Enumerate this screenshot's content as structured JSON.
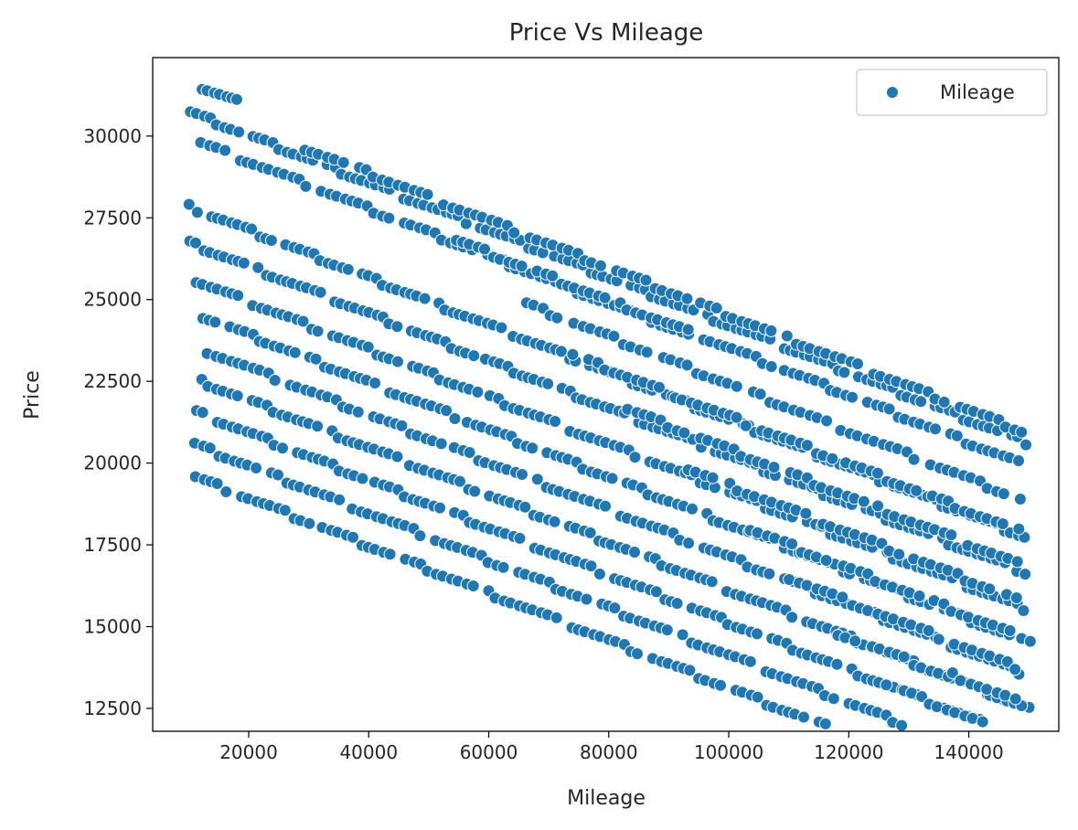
{
  "chart_data": {
    "type": "scatter",
    "title": "Price Vs Mileage",
    "xlabel": "Mileage",
    "ylabel": "Price",
    "xlim": [
      4000,
      155000
    ],
    "ylim": [
      11800,
      32400
    ],
    "xticks": [
      20000,
      40000,
      60000,
      80000,
      100000,
      120000,
      140000
    ],
    "yticks": [
      12500,
      15000,
      17500,
      20000,
      22500,
      25000,
      27500,
      30000
    ],
    "grid": false,
    "legend": {
      "placement": "top-right",
      "entries": [
        "Mileage"
      ]
    },
    "marker_color": "#1f77b4",
    "trend": {
      "slope": -0.0725
    },
    "series": [
      {
        "name": "Mileage",
        "bands": [
          {
            "intercept": 32300,
            "x_from": 12000,
            "x_to": 18500,
            "step": 1000
          },
          {
            "intercept": 31400,
            "x_from": 10000,
            "x_to": 150000,
            "step": 1150
          },
          {
            "intercept": 31700,
            "x_from": 29000,
            "x_to": 149000,
            "step": 1300
          },
          {
            "intercept": 30600,
            "x_from": 12000,
            "x_to": 94000,
            "step": 1250
          },
          {
            "intercept": 28500,
            "x_from": 10000,
            "x_to": 150000,
            "step": 1150
          },
          {
            "intercept": 30700,
            "x_from": 53000,
            "x_to": 149000,
            "step": 1250
          },
          {
            "intercept": 27400,
            "x_from": 10000,
            "x_to": 150000,
            "step": 1150
          },
          {
            "intercept": 26300,
            "x_from": 11000,
            "x_to": 150000,
            "step": 1200
          },
          {
            "intercept": 29600,
            "x_from": 66000,
            "x_to": 149000,
            "step": 1350
          },
          {
            "intercept": 25300,
            "x_from": 12000,
            "x_to": 150000,
            "step": 1200
          },
          {
            "intercept": 28600,
            "x_from": 74000,
            "x_to": 149000,
            "step": 1300
          },
          {
            "intercept": 24300,
            "x_from": 13000,
            "x_to": 150000,
            "step": 1250
          },
          {
            "intercept": 27600,
            "x_from": 83000,
            "x_to": 149000,
            "step": 1350
          },
          {
            "intercept": 23300,
            "x_from": 12000,
            "x_to": 150000,
            "step": 1200
          },
          {
            "intercept": 26500,
            "x_from": 93000,
            "x_to": 148000,
            "step": 1400
          },
          {
            "intercept": 22300,
            "x_from": 11000,
            "x_to": 150000,
            "step": 1200
          },
          {
            "intercept": 25400,
            "x_from": 102000,
            "x_to": 149000,
            "step": 1400
          },
          {
            "intercept": 21300,
            "x_from": 11000,
            "x_to": 150000,
            "step": 1250
          },
          {
            "intercept": 24400,
            "x_from": 110000,
            "x_to": 149000,
            "step": 1450
          },
          {
            "intercept": 20300,
            "x_from": 11000,
            "x_to": 150000,
            "step": 1250
          },
          {
            "intercept": 23300,
            "x_from": 118000,
            "x_to": 149000,
            "step": 1400
          },
          {
            "intercept": 22300,
            "x_from": 126000,
            "x_to": 149000,
            "step": 1450
          },
          {
            "intercept": 23400,
            "x_from": 137000,
            "x_to": 148000,
            "step": 1500
          }
        ]
      }
    ]
  }
}
